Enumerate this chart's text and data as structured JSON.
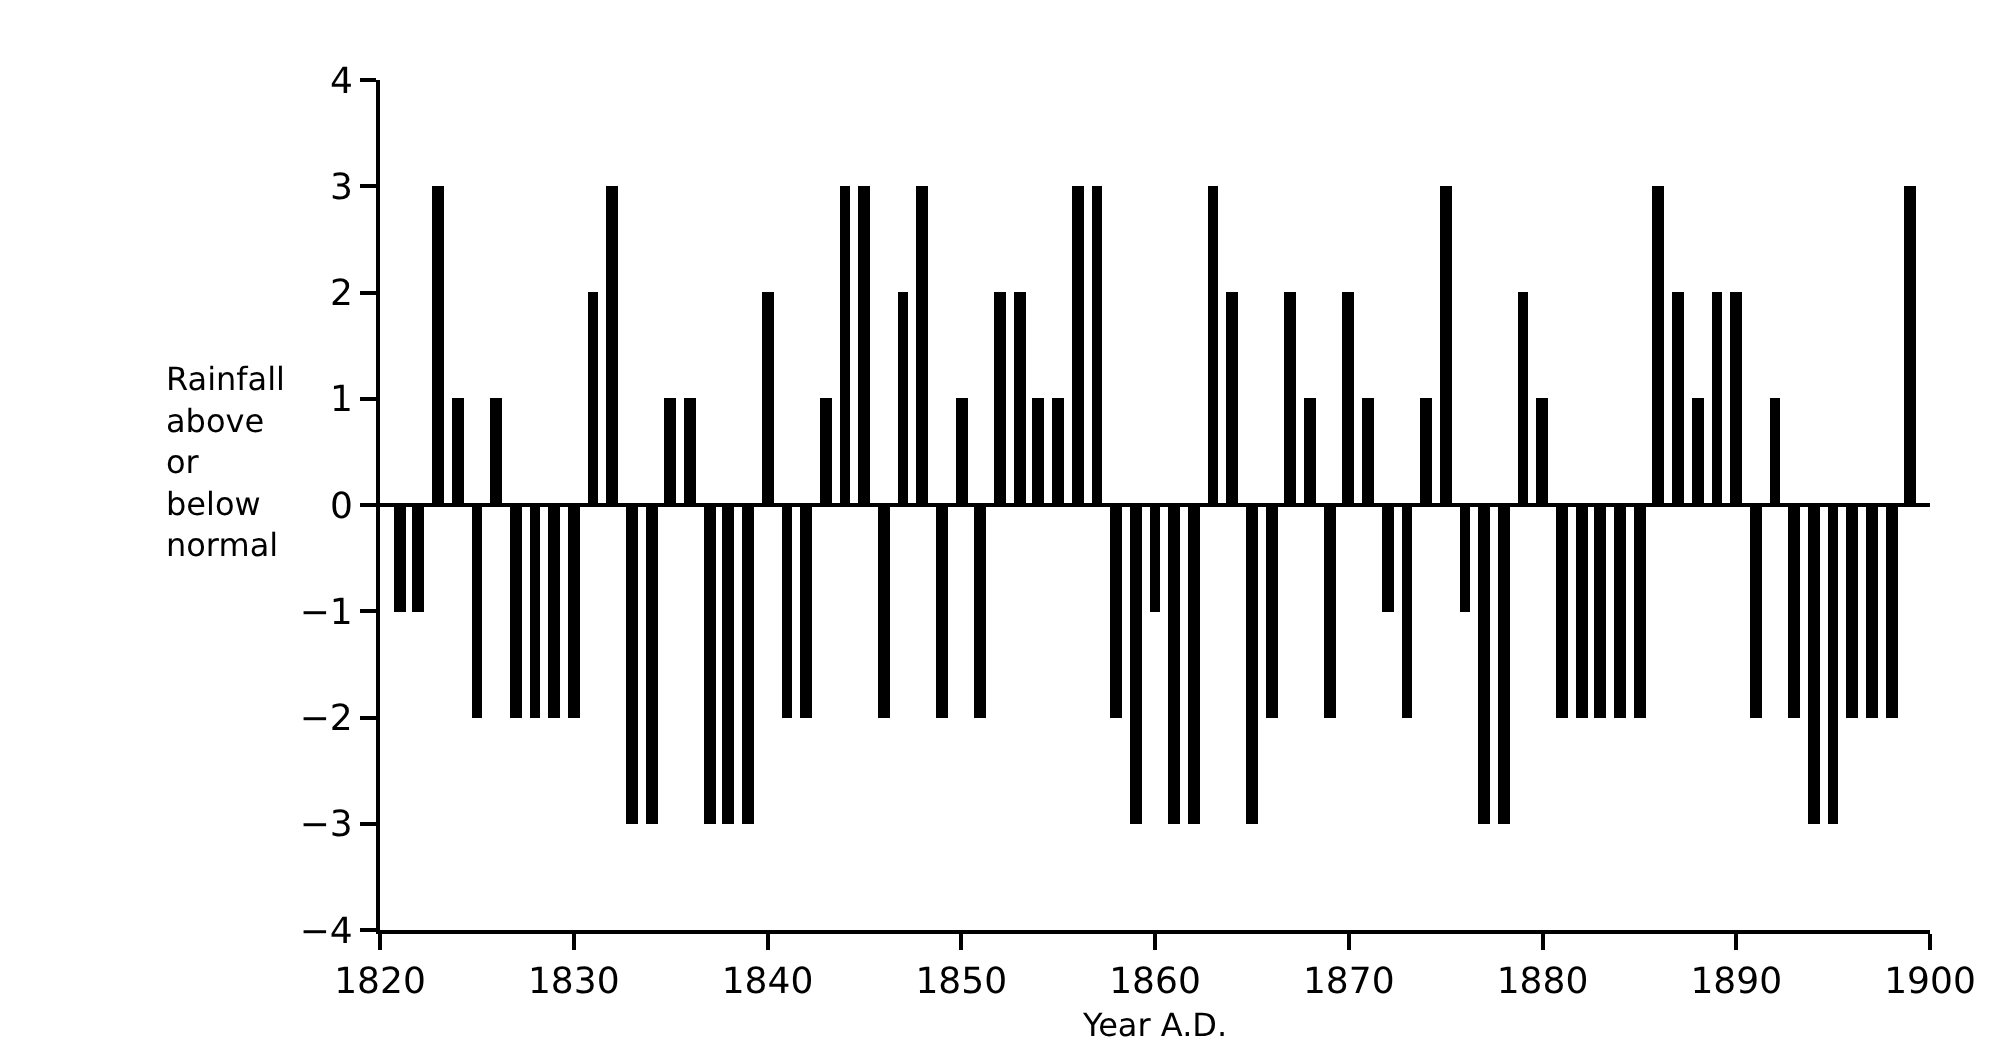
{
  "chart_data": {
    "type": "bar",
    "x": [
      1821,
      1822,
      1823,
      1824,
      1825,
      1826,
      1827,
      1828,
      1829,
      1830,
      1831,
      1832,
      1833,
      1834,
      1835,
      1836,
      1837,
      1838,
      1839,
      1840,
      1841,
      1842,
      1843,
      1844,
      1845,
      1846,
      1847,
      1848,
      1849,
      1850,
      1851,
      1852,
      1853,
      1854,
      1855,
      1856,
      1857,
      1858,
      1859,
      1860,
      1861,
      1862,
      1863,
      1864,
      1865,
      1866,
      1867,
      1868,
      1869,
      1870,
      1871,
      1872,
      1873,
      1874,
      1875,
      1876,
      1877,
      1878,
      1879,
      1880,
      1881,
      1882,
      1883,
      1884,
      1885,
      1886,
      1887,
      1888,
      1889,
      1890,
      1891,
      1892,
      1893,
      1894,
      1895,
      1896,
      1897,
      1898,
      1899
    ],
    "values": [
      -1,
      -1,
      3,
      1,
      -2,
      1,
      -2,
      -2,
      -2,
      -2,
      2,
      3,
      -3,
      -3,
      1,
      1,
      -3,
      -3,
      -3,
      2,
      -2,
      -2,
      1,
      3,
      3,
      -2,
      2,
      3,
      -2,
      1,
      -2,
      2,
      2,
      1,
      1,
      3,
      3,
      -2,
      -3,
      -1,
      -3,
      -3,
      3,
      2,
      -3,
      -2,
      2,
      1,
      -2,
      2,
      1,
      -1,
      -2,
      1,
      3,
      -1,
      -3,
      -3,
      2,
      1,
      -2,
      -2,
      -2,
      -2,
      -2,
      3,
      2,
      1,
      2,
      2,
      -2,
      1,
      -2,
      -3,
      -3,
      -2,
      -2,
      -2,
      3
    ],
    "color": "#000000",
    "xlabel": "Year A.D.",
    "ylabel": "Rainfall\nabove\nor\nbelow\nnormal",
    "xlim": [
      1820,
      1900
    ],
    "xticks": [
      1820,
      1830,
      1840,
      1850,
      1860,
      1870,
      1880,
      1890,
      1900
    ],
    "ylim": [
      -4,
      4
    ],
    "yticks": [
      -4,
      -3,
      -2,
      -1,
      0,
      1,
      2,
      3,
      4
    ],
    "ref_lines": [
      {
        "axis": "y",
        "value": 0,
        "color": "#000000"
      }
    ]
  }
}
